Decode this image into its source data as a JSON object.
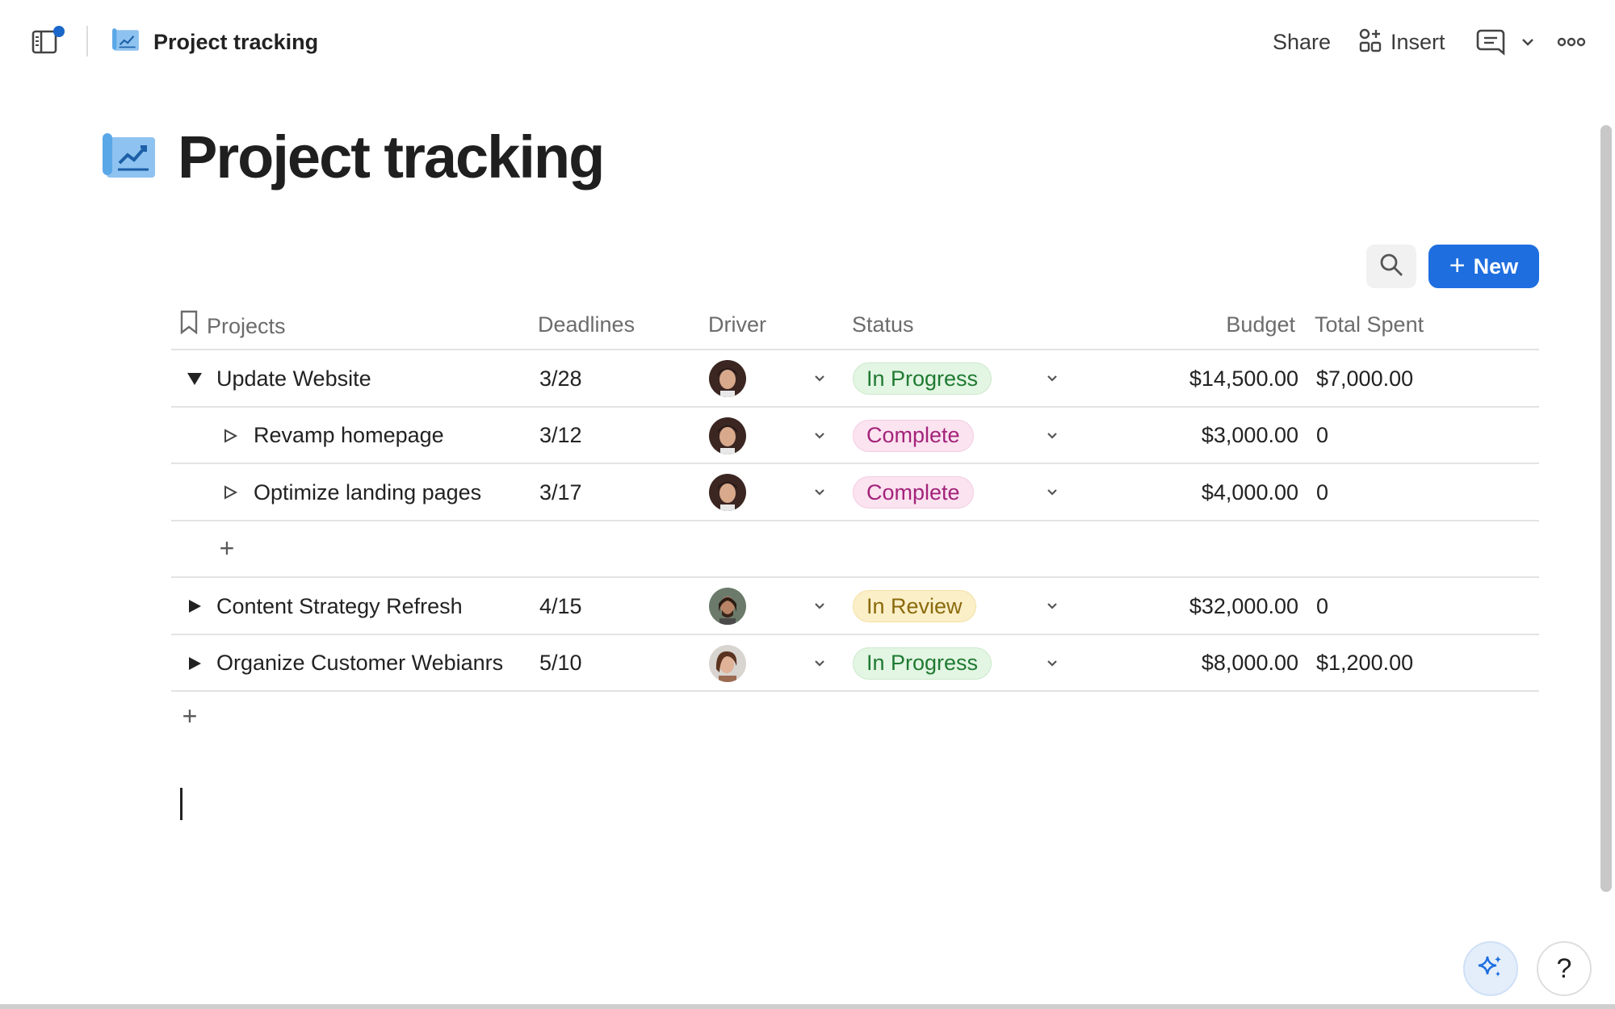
{
  "header": {
    "title": "Project tracking",
    "share_label": "Share",
    "insert_label": "Insert"
  },
  "page": {
    "title": "Project tracking"
  },
  "toolbar": {
    "new_label": "New"
  },
  "table": {
    "columns": {
      "projects": "Projects",
      "deadlines": "Deadlines",
      "driver": "Driver",
      "status": "Status",
      "budget": "Budget",
      "total_spent": "Total Spent"
    },
    "rows": [
      {
        "name": "Update Website",
        "deadline": "3/28",
        "status": "In Progress",
        "budget": "$14,500.00",
        "total_spent": "$7,000.00",
        "expanded": true,
        "level": 0
      },
      {
        "name": "Revamp homepage",
        "deadline": "3/12",
        "status": "Complete",
        "budget": "$3,000.00",
        "total_spent": "0",
        "expanded": false,
        "level": 1
      },
      {
        "name": "Optimize landing pages",
        "deadline": "3/17",
        "status": "Complete",
        "budget": "$4,000.00",
        "total_spent": "0",
        "expanded": false,
        "level": 1
      },
      {
        "name": "Content Strategy Refresh",
        "deadline": "4/15",
        "status": "In Review",
        "budget": "$32,000.00",
        "total_spent": "0",
        "expanded": false,
        "level": 0
      },
      {
        "name": "Organize Customer Webianrs",
        "deadline": "5/10",
        "status": "In Progress",
        "budget": "$8,000.00",
        "total_spent": "$1,200.00",
        "expanded": false,
        "level": 0
      }
    ]
  },
  "help_label": "?",
  "colors": {
    "accent": "#1e6ee0",
    "in_progress_bg": "#e3f5e3",
    "in_progress_fg": "#1f7a32",
    "complete_bg": "#fbe3f0",
    "complete_fg": "#a3237a",
    "in_review_bg": "#fbefc8",
    "in_review_fg": "#8a6a0c"
  },
  "icons": {
    "sidebar_toggle": "sidebar-toggle-icon",
    "doc": "chart-document-icon",
    "insert": "insert-shapes-icon",
    "comment": "comment-icon",
    "more": "more-horizontal-icon",
    "search": "search-icon",
    "ai": "sparkle-icon",
    "bookmark": "bookmark-icon"
  }
}
